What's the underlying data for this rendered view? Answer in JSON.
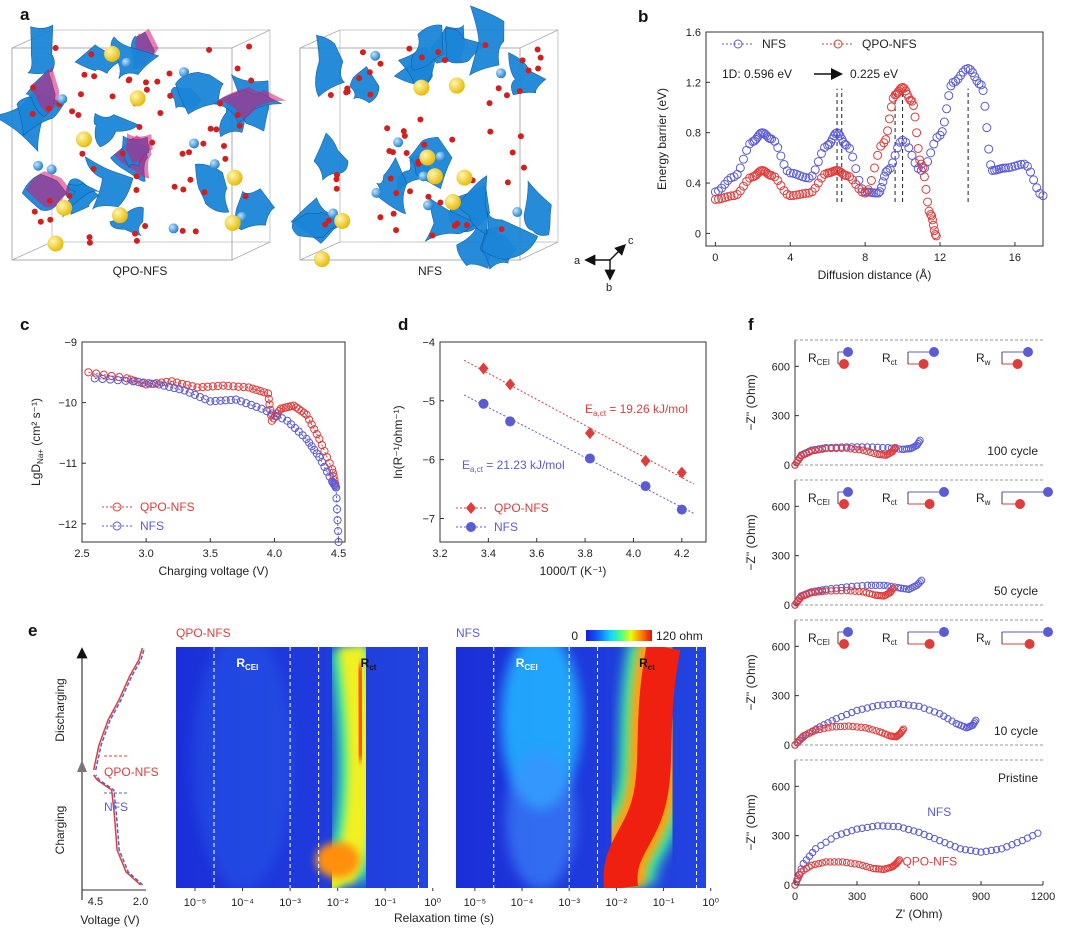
{
  "panel_letters": {
    "a": "a",
    "b": "b",
    "c": "c",
    "d": "d",
    "e": "e",
    "f": "f"
  },
  "colors": {
    "nfs": "#5b5bd6",
    "qpo": "#e03c3c",
    "iso_blue": "#1b85d8",
    "iso_magenta": "#d8176f",
    "o_atom": "#d41e1e",
    "na_atom": "#f5cf1c",
    "fe_atom": "#2a8fd8"
  },
  "panel_a": {
    "labels": [
      "QPO-NFS",
      "NFS"
    ],
    "axes_labels": {
      "a": "a",
      "b": "b",
      "c": "c"
    }
  },
  "chart_data": [
    {
      "id": "b",
      "type": "scatter",
      "xlabel": "Diffusion distance (Å)",
      "ylabel": "Energy barrier (eV)",
      "xlim": [
        -0.5,
        17.5
      ],
      "ylim": [
        -0.1,
        1.6
      ],
      "xticks": [
        "0",
        "4",
        "8",
        "12",
        "16"
      ],
      "yticks": [
        "0",
        "0.4",
        "0.8",
        "1.2",
        "1.6"
      ],
      "legend": "top",
      "annotation": {
        "prefix": "1D:",
        "from": "0.596 eV",
        "to": "0.225 eV"
      },
      "series": [
        {
          "name": "NFS",
          "color": "#5b5bd6",
          "x": [
            0,
            1,
            2,
            2.5,
            3,
            4,
            5,
            6,
            6.5,
            7,
            8,
            8.7,
            9.2,
            10,
            11,
            12,
            12.7,
            13.5,
            14.2,
            14.8,
            15.5,
            16.5,
            17.5
          ],
          "y": [
            0.33,
            0.45,
            0.73,
            0.8,
            0.75,
            0.48,
            0.44,
            0.7,
            0.8,
            0.7,
            0.33,
            0.32,
            0.5,
            0.74,
            0.5,
            0.78,
            1.2,
            1.31,
            1.18,
            0.5,
            0.52,
            0.55,
            0.3
          ]
        },
        {
          "name": "QPO-NFS",
          "color": "#e03c3c",
          "x": [
            0,
            1,
            2,
            2.5,
            3,
            4,
            5,
            6,
            6.5,
            7,
            8,
            9,
            9.6,
            10,
            10.5,
            11,
            11.5,
            11.8
          ],
          "y": [
            0.27,
            0.3,
            0.45,
            0.5,
            0.46,
            0.3,
            0.32,
            0.48,
            0.5,
            0.46,
            0.32,
            0.72,
            1.1,
            1.16,
            1.05,
            0.55,
            0.15,
            -0.02
          ]
        }
      ],
      "dashed_markers_x": [
        6.5,
        6.75,
        9.6,
        10.0,
        13.5
      ]
    },
    {
      "id": "c",
      "type": "line",
      "xlabel": "Charging voltage (V)",
      "ylabel": "LgD",
      "ylabel_sub": "Na+",
      "ylabel_unit": " (cm² s⁻¹)",
      "xlim": [
        2.5,
        4.55
      ],
      "ylim": [
        -12.3,
        -9.0
      ],
      "xticks": [
        "2.5",
        "3.0",
        "3.5",
        "4.0",
        "4.5"
      ],
      "yticks": [
        "−9",
        "−10",
        "−11",
        "−12"
      ],
      "legend": "bottom-left",
      "series": [
        {
          "name": "QPO-NFS",
          "color": "#e03c3c",
          "x": [
            2.55,
            2.85,
            3.0,
            3.2,
            3.4,
            3.6,
            3.8,
            3.95,
            3.98,
            4.05,
            4.15,
            4.25,
            4.35,
            4.45,
            4.48
          ],
          "y": [
            -9.5,
            -9.6,
            -9.7,
            -9.65,
            -9.75,
            -9.72,
            -9.75,
            -9.85,
            -10.3,
            -10.1,
            -10.05,
            -10.2,
            -10.6,
            -11.1,
            -11.4
          ]
        },
        {
          "name": "NFS",
          "color": "#5b5bd6",
          "x": [
            2.6,
            2.9,
            3.1,
            3.3,
            3.5,
            3.7,
            3.9,
            4.1,
            4.25,
            4.35,
            4.45,
            4.48,
            4.5
          ],
          "y": [
            -9.6,
            -9.65,
            -9.7,
            -9.8,
            -9.98,
            -9.95,
            -10.1,
            -10.3,
            -10.6,
            -10.9,
            -11.3,
            -11.4,
            -12.3
          ]
        }
      ]
    },
    {
      "id": "d",
      "type": "scatter",
      "xlabel": "1000/T (K⁻¹)",
      "ylabel": "ln(R⁻¹/ohm⁻¹)",
      "xlim": [
        3.2,
        4.3
      ],
      "ylim": [
        -7.4,
        -4.0
      ],
      "xticks": [
        "3.2",
        "3.4",
        "3.6",
        "3.8",
        "4.0",
        "4.2"
      ],
      "yticks": [
        "−4",
        "−5",
        "−6",
        "−7"
      ],
      "legend": "bottom-left",
      "series": [
        {
          "name": "QPO-NFS",
          "color": "#e03c3c",
          "marker": "diamond",
          "x": [
            3.38,
            3.49,
            3.82,
            4.05,
            4.2
          ],
          "y": [
            -4.45,
            -4.72,
            -5.55,
            -6.02,
            -6.22
          ],
          "annotation": {
            "prefix": "E",
            "sub": "a,ct",
            "value": " = 19.26 kJ/mol"
          }
        },
        {
          "name": "NFS",
          "color": "#5b5bd6",
          "marker": "circle",
          "x": [
            3.38,
            3.49,
            3.82,
            4.05,
            4.2
          ],
          "y": [
            -5.05,
            -5.35,
            -5.98,
            -6.45,
            -6.85
          ],
          "annotation": {
            "prefix": "E",
            "sub": "a,ct",
            "value": " = 21.23 kJ/mol"
          }
        }
      ]
    },
    {
      "id": "e",
      "type": "heatmap",
      "side_plot": {
        "xlabel": "Voltage (V)",
        "xticks": [
          "4.5",
          "2.0"
        ],
        "top_label": "Discharging",
        "bottom_label": "Charging",
        "legend": [
          "QPO-NFS",
          "NFS"
        ]
      },
      "xlabel": "Relaxation time (s)",
      "xticks": [
        "10⁻⁵",
        "10⁻⁴",
        "10⁻³",
        "10⁻²",
        "10⁻¹",
        "10⁰"
      ],
      "colorbar": {
        "min_label": "0",
        "max_label": "120 ohm"
      },
      "maps": [
        {
          "title": "QPO-NFS",
          "regions": [
            {
              "label": "R",
              "sub": "CEI"
            },
            {
              "label": "R",
              "sub": "ct"
            }
          ]
        },
        {
          "title": "NFS",
          "regions": [
            {
              "label": "R",
              "sub": "CEI"
            },
            {
              "label": "R",
              "sub": "ct"
            }
          ]
        }
      ]
    },
    {
      "id": "f",
      "type": "scatter",
      "xlabel": "Z' (Ohm)",
      "ylabel": "−Z'' (Ohm)",
      "xlim": [
        0,
        1200
      ],
      "xticks": [
        "0",
        "300",
        "600",
        "900",
        "1200"
      ],
      "yticks": [
        "0",
        "300",
        "600"
      ],
      "circuit_labels": [
        {
          "label": "R",
          "sub": "CEI"
        },
        {
          "label": "R",
          "sub": "ct"
        },
        {
          "label": "R",
          "sub": "w"
        }
      ],
      "subplots": [
        {
          "label": "100 cycle",
          "series": [
            {
              "name": "NFS",
              "color": "#5b5bd6",
              "x": [
                0,
                30,
                80,
                150,
                250,
                350,
                450,
                520,
                560,
                590,
                610
              ],
              "y": [
                0,
                60,
                90,
                105,
                110,
                110,
                105,
                95,
                100,
                120,
                160
              ]
            },
            {
              "name": "QPO-NFS",
              "color": "#e03c3c",
              "x": [
                0,
                30,
                80,
                150,
                250,
                330,
                400,
                440,
                470,
                490
              ],
              "y": [
                0,
                55,
                85,
                100,
                102,
                90,
                65,
                60,
                80,
                115
              ]
            }
          ]
        },
        {
          "label": "50 cycle",
          "series": [
            {
              "name": "NFS",
              "color": "#5b5bd6",
              "x": [
                0,
                30,
                80,
                150,
                250,
                350,
                430,
                500,
                550,
                590,
                620
              ],
              "y": [
                0,
                55,
                80,
                95,
                110,
                120,
                120,
                105,
                95,
                120,
                160
              ]
            },
            {
              "name": "QPO-NFS",
              "color": "#e03c3c",
              "x": [
                0,
                30,
                80,
                150,
                250,
                330,
                390,
                430,
                460,
                480
              ],
              "y": [
                0,
                50,
                75,
                85,
                88,
                80,
                60,
                55,
                75,
                110
              ]
            }
          ]
        },
        {
          "label": "10 cycle",
          "series": [
            {
              "name": "NFS",
              "color": "#5b5bd6",
              "x": [
                0,
                50,
                120,
                200,
                300,
                400,
                500,
                600,
                700,
                780,
                830,
                860,
                880
              ],
              "y": [
                0,
                60,
                110,
                160,
                210,
                240,
                250,
                235,
                190,
                130,
                105,
                120,
                160
              ]
            },
            {
              "name": "QPO-NFS",
              "color": "#e03c3c",
              "x": [
                0,
                40,
                100,
                180,
                260,
                340,
                410,
                460,
                490,
                510,
                530
              ],
              "y": [
                0,
                55,
                90,
                110,
                115,
                105,
                80,
                55,
                50,
                70,
                105
              ]
            }
          ]
        },
        {
          "label": "Pristine",
          "series_labels": [
            "NFS",
            "QPO-NFS"
          ],
          "series": [
            {
              "name": "NFS",
              "color": "#5b5bd6",
              "x": [
                0,
                40,
                100,
                200,
                300,
                400,
                500,
                600,
                700,
                800,
                900,
                1000,
                1100,
                1200
              ],
              "y": [
                0,
                130,
                220,
                300,
                340,
                360,
                355,
                320,
                270,
                220,
                200,
                220,
                270,
                330
              ]
            },
            {
              "name": "QPO-NFS",
              "color": "#e03c3c",
              "x": [
                0,
                30,
                80,
                150,
                230,
                310,
                380,
                430,
                470,
                490,
                510
              ],
              "y": [
                0,
                80,
                120,
                140,
                140,
                125,
                100,
                95,
                110,
                130,
                160
              ]
            }
          ]
        }
      ]
    }
  ]
}
